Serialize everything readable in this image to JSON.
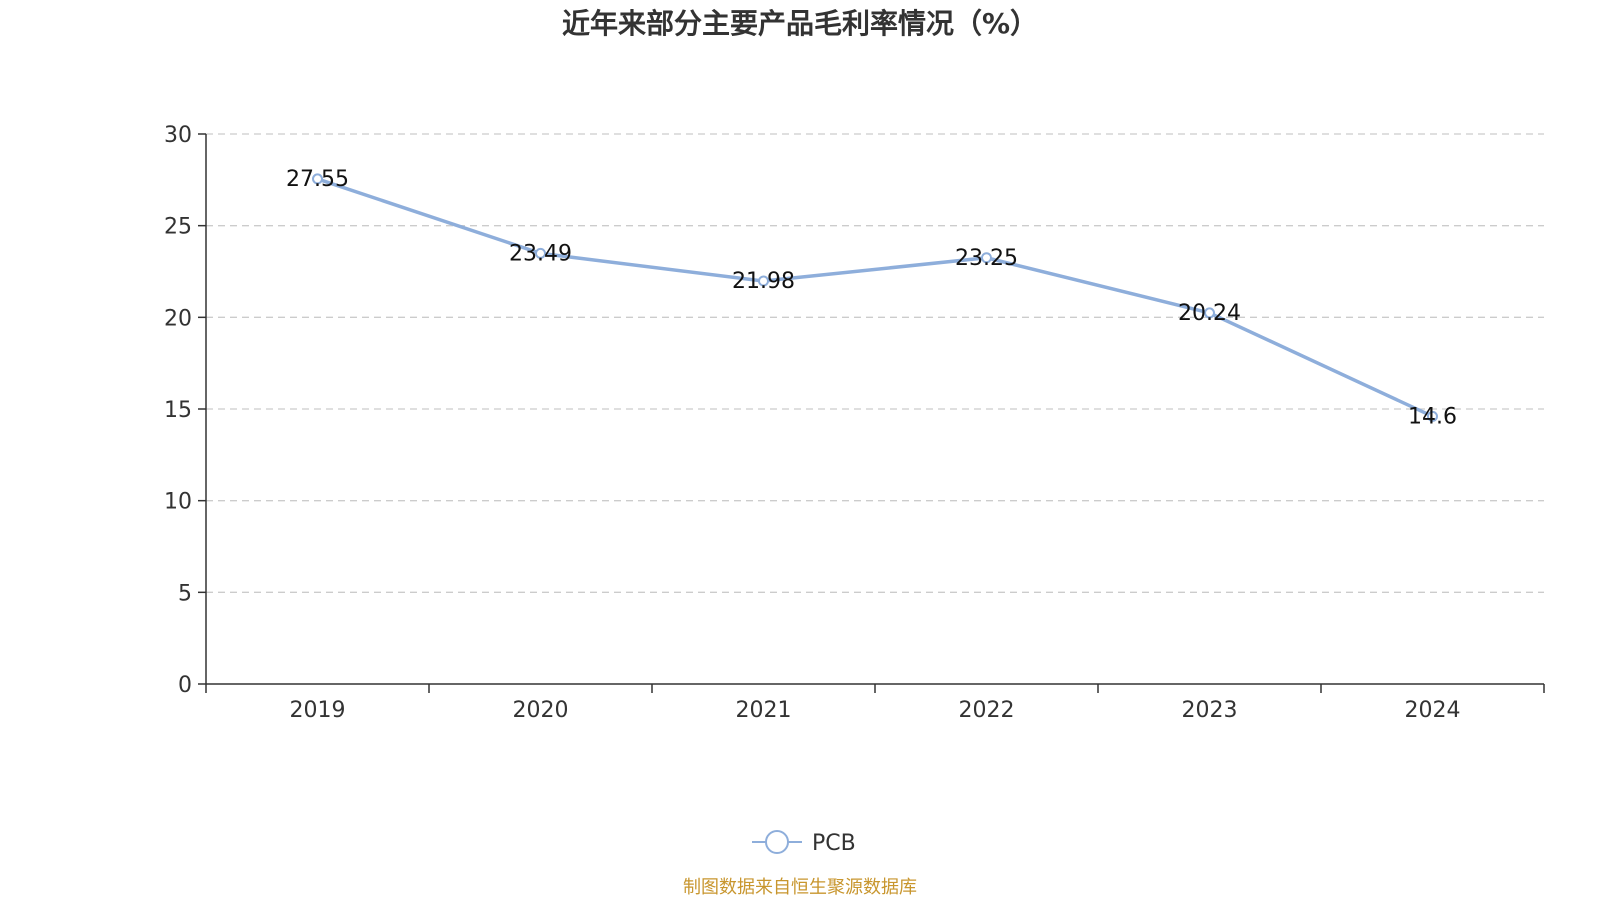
{
  "chart_data": {
    "type": "line",
    "title": "近年来部分主要产品毛利率情况（%）",
    "categories": [
      "2019",
      "2020",
      "2021",
      "2022",
      "2023",
      "2024"
    ],
    "series": [
      {
        "name": "PCB",
        "values": [
          27.55,
          23.49,
          21.98,
          23.25,
          20.24,
          14.6
        ],
        "labels": [
          "27.55",
          "23.49",
          "21.98",
          "23.25",
          "20.24",
          "14.6"
        ]
      }
    ],
    "ylim": [
      0,
      30
    ],
    "yticks": [
      "0",
      "5",
      "10",
      "15",
      "20",
      "25",
      "30"
    ],
    "ytick_values": [
      0,
      5,
      10,
      15,
      20,
      25,
      30
    ],
    "xlabel": "",
    "ylabel": "",
    "grid": true,
    "legend_position": "bottom-center"
  },
  "colors": {
    "series": "#8eaedb",
    "axis": "#333333",
    "grid": "#cccccc",
    "source": "#c8962e"
  },
  "source": "制图数据来自恒生聚源数据库"
}
